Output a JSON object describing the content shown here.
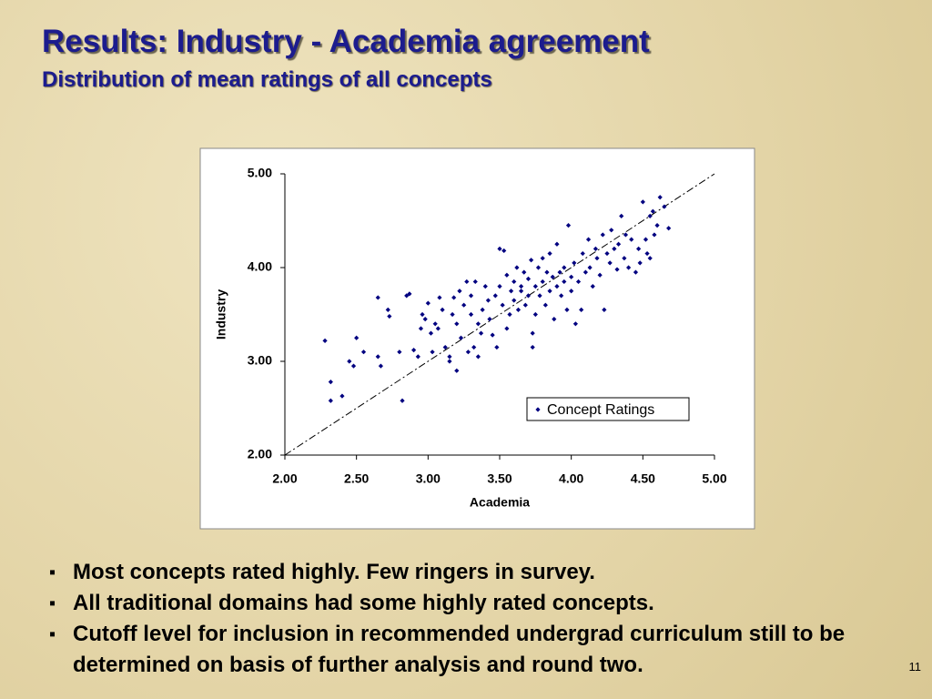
{
  "slide": {
    "title": "Results: Industry - Academia agreement",
    "subtitle": "Distribution of mean ratings of all concepts",
    "bullets": [
      "Most concepts rated highly.  Few ringers in survey.",
      "All traditional domains had some highly rated concepts.",
      "Cutoff level for inclusion in recommended undergrad curriculum still to be determined on basis of further analysis and round two."
    ],
    "page_number": "11"
  },
  "chart_data": {
    "type": "scatter",
    "xlabel": "Academia",
    "ylabel": "Industry",
    "xlim": [
      2,
      5
    ],
    "ylim": [
      2,
      5
    ],
    "xticks": [
      {
        "value": 2,
        "label": "2.00"
      },
      {
        "value": 2.5,
        "label": "2.50"
      },
      {
        "value": 3,
        "label": "3.00"
      },
      {
        "value": 3.5,
        "label": "3.50"
      },
      {
        "value": 4,
        "label": "4.00"
      },
      {
        "value": 4.5,
        "label": "4.50"
      },
      {
        "value": 5,
        "label": "5.00"
      }
    ],
    "yticks": [
      {
        "value": 2,
        "label": "2.00"
      },
      {
        "value": 3,
        "label": "3.00"
      },
      {
        "value": 4,
        "label": "4.00"
      },
      {
        "value": 5,
        "label": "5.00"
      }
    ],
    "identity_line": true,
    "legend": "lower right",
    "series": [
      {
        "name": "Concept Ratings",
        "color": "#000080",
        "x": [
          2.28,
          2.32,
          2.32,
          2.4,
          2.45,
          2.48,
          2.5,
          2.55,
          2.65,
          2.65,
          2.67,
          2.72,
          2.73,
          2.8,
          2.82,
          2.85,
          2.87,
          2.9,
          2.93,
          2.95,
          2.96,
          2.98,
          3.0,
          3.02,
          3.03,
          3.05,
          3.07,
          3.08,
          3.1,
          3.12,
          3.15,
          3.15,
          3.17,
          3.18,
          3.2,
          3.2,
          3.22,
          3.23,
          3.25,
          3.27,
          3.28,
          3.3,
          3.3,
          3.32,
          3.33,
          3.35,
          3.35,
          3.37,
          3.38,
          3.4,
          3.42,
          3.43,
          3.45,
          3.47,
          3.48,
          3.5,
          3.5,
          3.52,
          3.53,
          3.55,
          3.55,
          3.57,
          3.58,
          3.6,
          3.6,
          3.62,
          3.63,
          3.65,
          3.65,
          3.67,
          3.68,
          3.7,
          3.7,
          3.72,
          3.73,
          3.73,
          3.75,
          3.75,
          3.77,
          3.78,
          3.8,
          3.8,
          3.82,
          3.83,
          3.85,
          3.85,
          3.87,
          3.88,
          3.9,
          3.9,
          3.92,
          3.93,
          3.95,
          3.95,
          3.97,
          3.98,
          4.0,
          4.0,
          4.02,
          4.03,
          4.05,
          4.07,
          4.08,
          4.1,
          4.12,
          4.13,
          4.15,
          4.17,
          4.18,
          4.2,
          4.22,
          4.23,
          4.25,
          4.27,
          4.28,
          4.3,
          4.32,
          4.33,
          4.35,
          4.37,
          4.38,
          4.4,
          4.42,
          4.45,
          4.47,
          4.48,
          4.5,
          4.52,
          4.53,
          4.55,
          4.57,
          4.58,
          4.6,
          4.62,
          4.65,
          4.68,
          4.55
        ],
        "values": [
          3.22,
          2.78,
          2.58,
          2.63,
          3.0,
          2.95,
          3.25,
          3.1,
          3.68,
          3.05,
          2.95,
          3.55,
          3.48,
          3.1,
          2.58,
          3.7,
          3.72,
          3.12,
          3.05,
          3.35,
          3.5,
          3.45,
          3.62,
          3.3,
          3.1,
          3.4,
          3.35,
          3.68,
          3.55,
          3.15,
          3.05,
          3.0,
          3.5,
          3.68,
          2.9,
          3.4,
          3.75,
          3.25,
          3.6,
          3.85,
          3.1,
          3.5,
          3.7,
          3.15,
          3.85,
          3.4,
          3.05,
          3.3,
          3.55,
          3.8,
          3.65,
          3.45,
          3.28,
          3.7,
          3.15,
          3.8,
          4.2,
          3.6,
          4.18,
          3.92,
          3.35,
          3.5,
          3.75,
          3.85,
          3.65,
          4.0,
          3.55,
          3.8,
          3.75,
          3.95,
          3.6,
          3.88,
          3.7,
          4.08,
          3.15,
          3.3,
          3.8,
          3.5,
          4.0,
          3.7,
          3.85,
          4.1,
          3.6,
          3.95,
          4.15,
          3.75,
          3.9,
          3.45,
          4.25,
          3.8,
          3.95,
          3.7,
          4.0,
          3.85,
          3.55,
          4.45,
          3.9,
          3.75,
          4.05,
          3.4,
          3.85,
          3.55,
          4.15,
          3.95,
          4.3,
          4.0,
          3.8,
          4.2,
          4.1,
          3.92,
          4.35,
          3.55,
          4.15,
          4.05,
          4.4,
          4.2,
          3.98,
          4.25,
          4.55,
          4.1,
          4.35,
          4.0,
          4.3,
          3.95,
          4.2,
          4.05,
          4.7,
          4.3,
          4.15,
          4.55,
          4.6,
          4.35,
          4.45,
          4.75,
          4.65,
          4.42,
          4.1
        ]
      }
    ]
  }
}
